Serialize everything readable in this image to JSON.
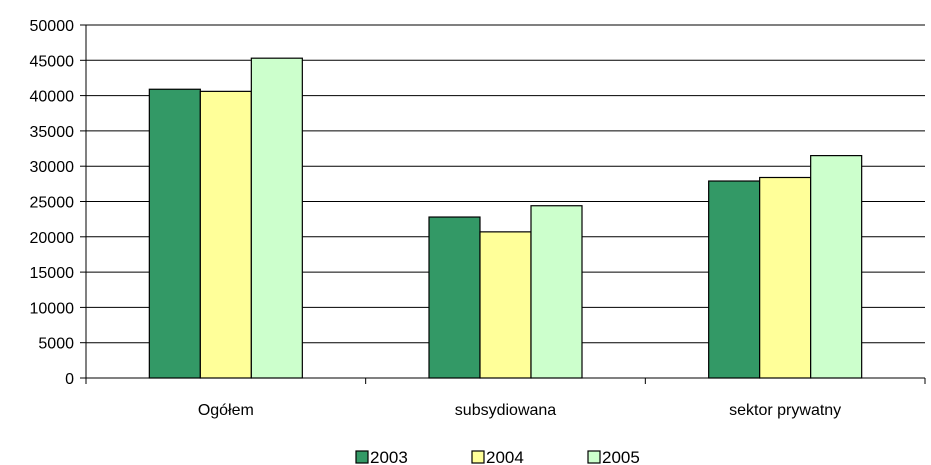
{
  "chart_data": {
    "type": "bar",
    "categories": [
      "Ogółem",
      "subsydiowana",
      "sektor prywatny"
    ],
    "series": [
      {
        "name": "2003",
        "values": [
          40900,
          22800,
          27900
        ],
        "color": "#339966"
      },
      {
        "name": "2004",
        "values": [
          40600,
          20700,
          28400
        ],
        "color": "#ffff99"
      },
      {
        "name": "2005",
        "values": [
          45300,
          24400,
          31500
        ],
        "color": "#ccffcc"
      }
    ],
    "title": "",
    "xlabel": "",
    "ylabel": "",
    "ylim": [
      0,
      50000
    ],
    "yticks": [
      0,
      5000,
      10000,
      15000,
      20000,
      25000,
      30000,
      35000,
      40000,
      45000,
      50000
    ],
    "grid": true,
    "legend_position": "bottom"
  }
}
